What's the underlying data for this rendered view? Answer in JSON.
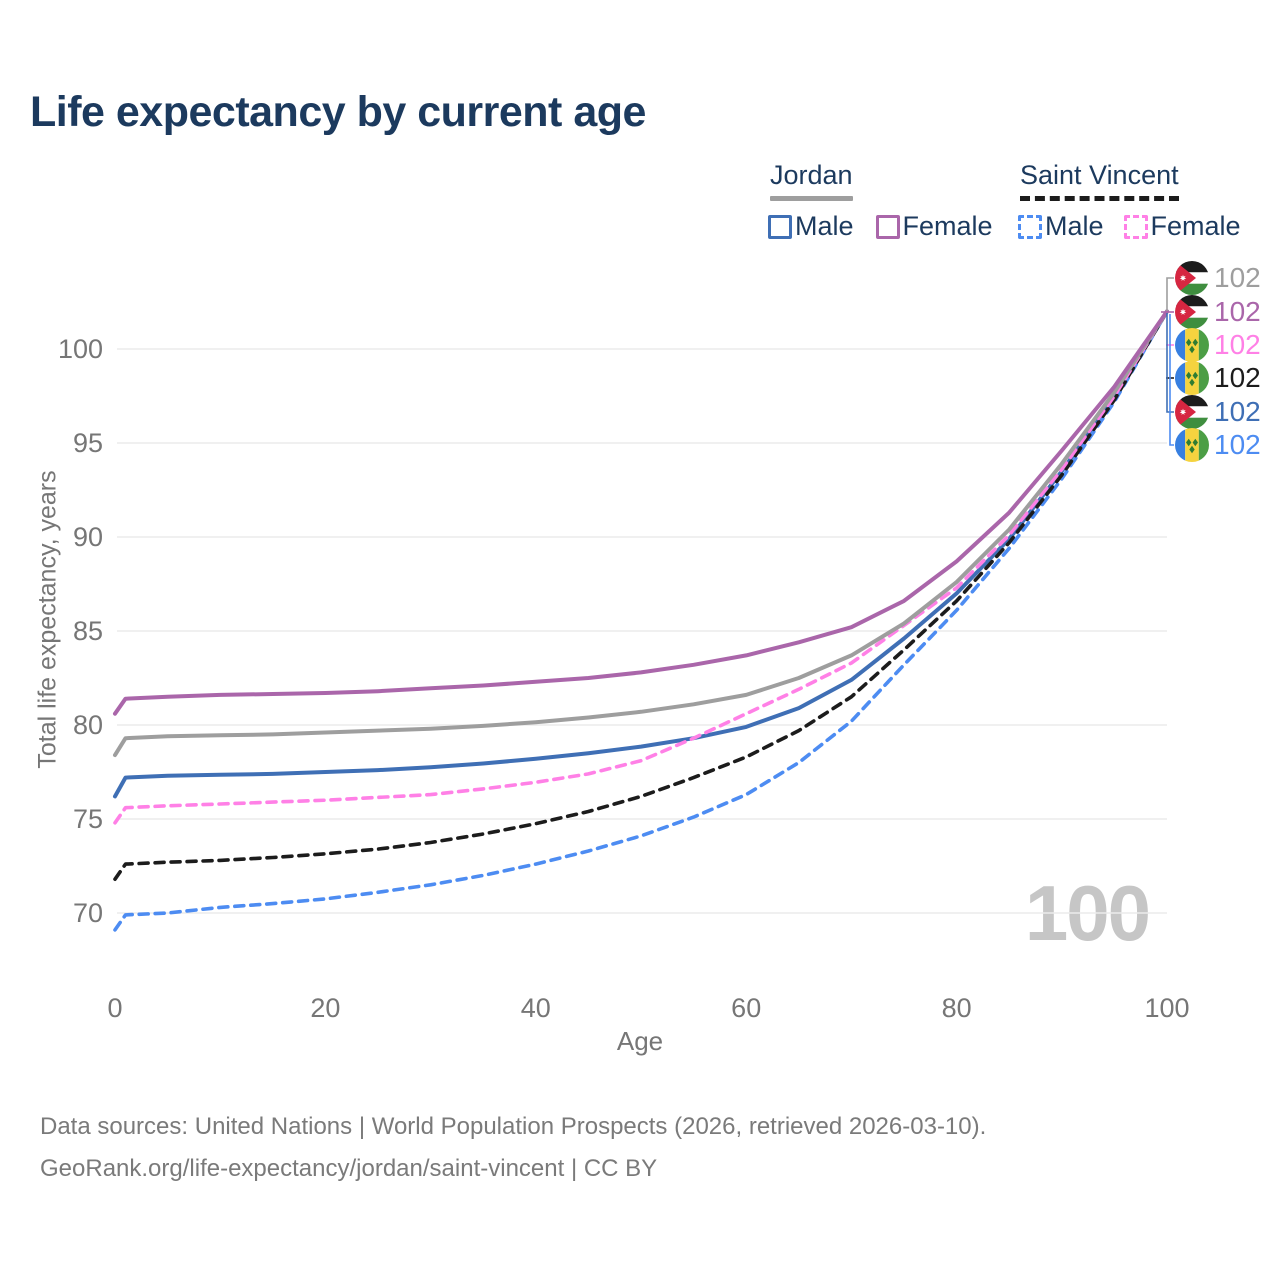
{
  "title": "Life expectancy by current age",
  "legend": {
    "groups": [
      {
        "id": "jordan",
        "label": "Jordan",
        "line_color": "#9e9e9e",
        "line_style": "solid",
        "items": [
          {
            "label": "Male",
            "color": "#3f6fb5",
            "style": "solid"
          },
          {
            "label": "Female",
            "color": "#aa66aa",
            "style": "solid"
          }
        ]
      },
      {
        "id": "saint-vincent",
        "label": "Saint Vincent",
        "line_color": "#1c1c1c",
        "line_style": "dashed",
        "items": [
          {
            "label": "Male",
            "color": "#4d8cf2",
            "style": "dashed"
          },
          {
            "label": "Female",
            "color": "#ff80e6",
            "style": "dashed"
          }
        ]
      }
    ]
  },
  "chart_data": {
    "type": "line",
    "title": "Life expectancy by current age",
    "xlabel": "Age",
    "ylabel": "Total life expectancy, years",
    "xlim": [
      0,
      100
    ],
    "ylim": [
      70,
      100
    ],
    "grid": true,
    "x_ticks": [
      0,
      20,
      40,
      60,
      80,
      100
    ],
    "y_ticks": [
      70,
      75,
      80,
      85,
      90,
      95,
      100
    ],
    "watermark": "100",
    "x": [
      0,
      1,
      5,
      10,
      15,
      20,
      25,
      30,
      35,
      40,
      45,
      50,
      55,
      60,
      65,
      70,
      75,
      80,
      85,
      90,
      95,
      100
    ],
    "series": [
      {
        "name": "Jordan Male",
        "country": "Jordan",
        "sex": "Male",
        "color": "#3f6fb5",
        "dash": false,
        "values": [
          76.2,
          77.2,
          77.3,
          77.35,
          77.4,
          77.5,
          77.6,
          77.75,
          77.95,
          78.2,
          78.5,
          78.85,
          79.3,
          79.9,
          80.9,
          82.4,
          84.6,
          87.0,
          89.9,
          93.5,
          97.4,
          102
        ]
      },
      {
        "name": "Saint Vincent Male",
        "country": "Saint Vincent",
        "sex": "Male",
        "color": "#4d8cf2",
        "dash": true,
        "values": [
          69.1,
          69.9,
          70.0,
          70.3,
          70.5,
          70.75,
          71.1,
          71.5,
          72.0,
          72.6,
          73.3,
          74.1,
          75.1,
          76.3,
          78.0,
          80.2,
          83.2,
          86.1,
          89.4,
          93.1,
          97.2,
          102
        ]
      },
      {
        "name": "Saint Vincent",
        "country": "Saint Vincent",
        "sex": "Both",
        "color": "#1c1c1c",
        "dash": true,
        "values": [
          71.8,
          72.6,
          72.7,
          72.8,
          72.95,
          73.15,
          73.4,
          73.75,
          74.2,
          74.75,
          75.4,
          76.2,
          77.2,
          78.3,
          79.7,
          81.5,
          84.0,
          86.6,
          89.7,
          93.3,
          97.3,
          102
        ]
      },
      {
        "name": "Saint Vincent Female",
        "country": "Saint Vincent",
        "sex": "Female",
        "color": "#ff80e6",
        "dash": true,
        "values": [
          74.8,
          75.6,
          75.7,
          75.8,
          75.9,
          76.0,
          76.15,
          76.3,
          76.6,
          76.95,
          77.4,
          78.1,
          79.3,
          80.6,
          81.9,
          83.3,
          85.3,
          87.3,
          90.1,
          93.6,
          97.5,
          102
        ]
      },
      {
        "name": "Jordan",
        "country": "Jordan",
        "sex": "Both",
        "color": "#9e9e9e",
        "dash": false,
        "values": [
          78.4,
          79.3,
          79.4,
          79.45,
          79.5,
          79.6,
          79.7,
          79.8,
          79.95,
          80.15,
          80.4,
          80.7,
          81.1,
          81.6,
          82.5,
          83.7,
          85.4,
          87.6,
          90.4,
          93.9,
          97.7,
          102
        ]
      },
      {
        "name": "Jordan Female",
        "country": "Jordan",
        "sex": "Female",
        "color": "#aa66aa",
        "dash": false,
        "values": [
          80.6,
          81.4,
          81.5,
          81.6,
          81.65,
          81.7,
          81.8,
          81.95,
          82.1,
          82.3,
          82.5,
          82.8,
          83.2,
          83.7,
          84.4,
          85.2,
          86.6,
          88.7,
          91.3,
          94.6,
          98.0,
          102
        ]
      }
    ],
    "end_labels": [
      {
        "series": "Jordan",
        "value": "102",
        "color": "#9e9e9e",
        "flag": "jordan"
      },
      {
        "series": "Jordan Female",
        "value": "102",
        "color": "#aa66aa",
        "flag": "jordan"
      },
      {
        "series": "Saint Vincent Female",
        "value": "102",
        "color": "#ff80e6",
        "flag": "saint-vincent"
      },
      {
        "series": "Saint Vincent",
        "value": "102",
        "color": "#1c1c1c",
        "flag": "saint-vincent"
      },
      {
        "series": "Jordan Male",
        "value": "102",
        "color": "#3f6fb5",
        "flag": "jordan"
      },
      {
        "series": "Saint Vincent Male",
        "value": "102",
        "color": "#4d8cf2",
        "flag": "saint-vincent"
      }
    ],
    "legend_position": "top-right"
  },
  "icons": {
    "jordan_flag": {
      "black": "#1c1c1c",
      "white": "#ffffff",
      "green": "#3f8e3f",
      "red": "#d62641",
      "star": "#ffffff"
    },
    "saint_vincent_flag": {
      "blue": "#377fe0",
      "yellow": "#f5d33f",
      "green": "#4c9e45",
      "diamond": "#2f7d32"
    }
  },
  "colors": {
    "title_text": "#1c3a5e",
    "axis_text": "#767676",
    "gridline": "#ececec",
    "watermark": "#c6c6c6",
    "footer_text": "#7a7a7a"
  },
  "footer": {
    "line1": "Data sources: United Nations | World Population Prospects (2026, retrieved 2026-03-10).",
    "line2": "GeoRank.org/life-expectancy/jordan/saint-vincent | CC BY"
  }
}
